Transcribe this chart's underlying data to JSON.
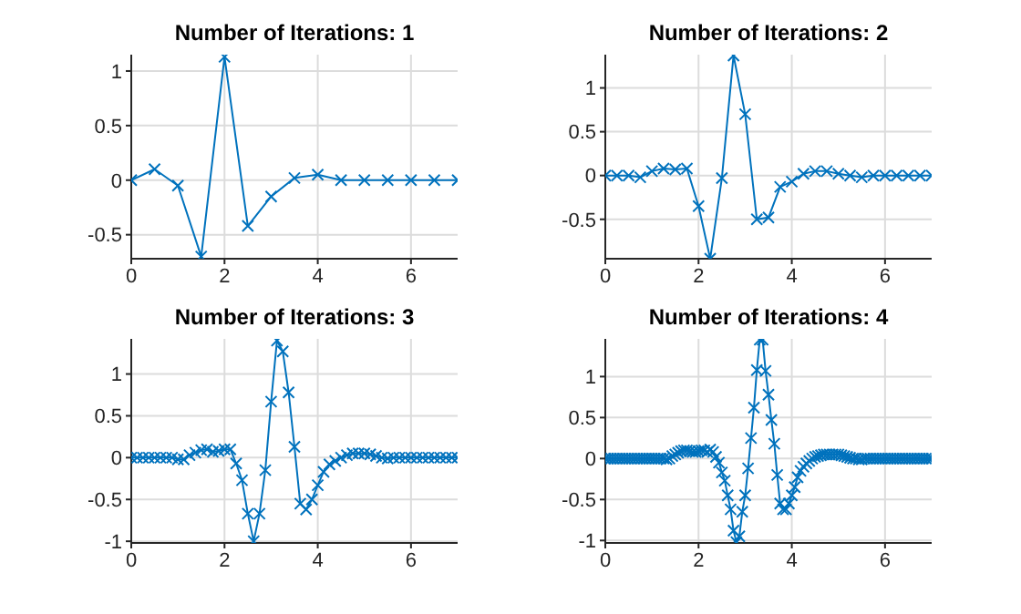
{
  "chart_data": [
    {
      "type": "line",
      "title": "Number of Iterations: 1",
      "xlim": [
        0,
        7
      ],
      "xticks": [
        0,
        2,
        4,
        6
      ],
      "ylim": [
        -0.72,
        1.15
      ],
      "yticks": [
        -0.5,
        0,
        0.5,
        1
      ],
      "grid": true,
      "marker": "cross",
      "line_style": "solid",
      "x": [
        0,
        0.5,
        1,
        1.5,
        2,
        2.5,
        3,
        3.5,
        4,
        4.5,
        5,
        5.5,
        6,
        6.5,
        7
      ],
      "series": [
        {
          "color": "#0072bd",
          "values": [
            0,
            0.1,
            -0.05,
            -0.7,
            1.13,
            -0.42,
            -0.15,
            0.02,
            0.05,
            0,
            0,
            0,
            0,
            0,
            0
          ]
        }
      ]
    },
    {
      "type": "line",
      "title": "Number of Iterations: 2",
      "xlim": [
        0,
        7
      ],
      "xticks": [
        0,
        2,
        4,
        6
      ],
      "ylim": [
        -0.95,
        1.38
      ],
      "yticks": [
        -0.5,
        0,
        0.5,
        1
      ],
      "grid": true,
      "marker": "cross",
      "line_style": "solid",
      "x": [
        0,
        0.25,
        0.5,
        0.75,
        1,
        1.25,
        1.5,
        1.75,
        2,
        2.25,
        2.5,
        2.75,
        3,
        3.25,
        3.5,
        3.75,
        4,
        4.25,
        4.5,
        4.75,
        5,
        5.25,
        5.5,
        5.75,
        6,
        6.25,
        6.5,
        6.75,
        7
      ],
      "series": [
        {
          "color": "#0072bd",
          "values": [
            0,
            0,
            0,
            -0.02,
            0.05,
            0.08,
            0.07,
            0.08,
            -0.35,
            -0.95,
            -0.03,
            1.37,
            0.7,
            -0.5,
            -0.48,
            -0.13,
            -0.07,
            0.02,
            0.05,
            0.05,
            0.02,
            0,
            -0.02,
            0,
            0,
            0,
            0,
            0,
            0
          ]
        }
      ]
    },
    {
      "type": "line",
      "title": "Number of Iterations: 3",
      "xlim": [
        0,
        7
      ],
      "xticks": [
        0,
        2,
        4,
        6
      ],
      "ylim": [
        -1.02,
        1.42
      ],
      "yticks": [
        -1,
        -0.5,
        0,
        0.5,
        1
      ],
      "grid": true,
      "marker": "cross",
      "line_style": "solid",
      "x": [
        0,
        0.125,
        0.25,
        0.375,
        0.5,
        0.625,
        0.75,
        0.875,
        1,
        1.125,
        1.25,
        1.375,
        1.5,
        1.625,
        1.75,
        1.875,
        2,
        2.125,
        2.25,
        2.375,
        2.5,
        2.625,
        2.75,
        2.875,
        3,
        3.125,
        3.25,
        3.375,
        3.5,
        3.625,
        3.75,
        3.875,
        4,
        4.125,
        4.25,
        4.375,
        4.5,
        4.625,
        4.75,
        4.875,
        5,
        5.125,
        5.25,
        5.375,
        5.5,
        5.625,
        5.75,
        5.875,
        6,
        6.125,
        6.25,
        6.375,
        6.5,
        6.625,
        6.75,
        6.875,
        7
      ],
      "series": [
        {
          "color": "#0072bd",
          "values": [
            0,
            0,
            0,
            0,
            0,
            0,
            0,
            0,
            -0.02,
            -0.02,
            0.03,
            0.06,
            0.09,
            0.1,
            0.07,
            0.08,
            0.1,
            0.1,
            -0.07,
            -0.27,
            -0.67,
            -1.0,
            -0.67,
            -0.15,
            0.67,
            1.4,
            1.27,
            0.78,
            0.13,
            -0.55,
            -0.62,
            -0.5,
            -0.33,
            -0.17,
            -0.08,
            -0.04,
            0,
            0.03,
            0.05,
            0.05,
            0.05,
            0.04,
            0.02,
            0,
            -0.01,
            0,
            0,
            0,
            0,
            0,
            0,
            0,
            0,
            0,
            0,
            0,
            0
          ]
        }
      ]
    },
    {
      "type": "line",
      "title": "Number of Iterations: 4",
      "xlim": [
        0,
        7
      ],
      "xticks": [
        0,
        2,
        4,
        6
      ],
      "ylim": [
        -1.03,
        1.46
      ],
      "yticks": [
        -1,
        -0.5,
        0,
        0.5,
        1
      ],
      "grid": true,
      "marker": "cross",
      "line_style": "solid",
      "x": [
        0,
        0.0625,
        0.125,
        0.1875,
        0.25,
        0.3125,
        0.375,
        0.4375,
        0.5,
        0.5625,
        0.625,
        0.6875,
        0.75,
        0.8125,
        0.875,
        0.9375,
        1,
        1.0625,
        1.125,
        1.1875,
        1.25,
        1.3125,
        1.375,
        1.4375,
        1.5,
        1.5625,
        1.625,
        1.6875,
        1.75,
        1.8125,
        1.875,
        1.9375,
        2,
        2.0625,
        2.125,
        2.1875,
        2.25,
        2.3125,
        2.375,
        2.4375,
        2.5,
        2.5625,
        2.625,
        2.6875,
        2.75,
        2.8125,
        2.875,
        2.9375,
        3,
        3.0625,
        3.125,
        3.1875,
        3.25,
        3.3125,
        3.375,
        3.4375,
        3.5,
        3.5625,
        3.625,
        3.6875,
        3.75,
        3.8125,
        3.875,
        3.9375,
        4,
        4.0625,
        4.125,
        4.1875,
        4.25,
        4.3125,
        4.375,
        4.4375,
        4.5,
        4.5625,
        4.625,
        4.6875,
        4.75,
        4.8125,
        4.875,
        4.9375,
        5,
        5.0625,
        5.125,
        5.1875,
        5.25,
        5.3125,
        5.375,
        5.4375,
        5.5,
        5.5625,
        5.625,
        5.6875,
        5.75,
        5.8125,
        5.875,
        5.9375,
        6,
        6.0625,
        6.125,
        6.1875,
        6.25,
        6.3125,
        6.375,
        6.4375,
        6.5,
        6.5625,
        6.625,
        6.6875,
        6.75,
        6.8125,
        6.875,
        6.9375,
        7
      ],
      "series": [
        {
          "color": "#0072bd",
          "values": [
            0,
            0,
            0,
            0,
            0,
            0,
            0,
            0,
            0,
            0,
            0,
            0,
            0,
            0,
            0,
            0,
            0,
            0,
            0,
            0,
            0,
            -0.01,
            0,
            0.03,
            0.05,
            0.07,
            0.09,
            0.1,
            0.1,
            0.09,
            0.08,
            0.08,
            0.09,
            0.1,
            0.1,
            0.08,
            0.11,
            0.08,
            0.02,
            -0.05,
            -0.17,
            -0.27,
            -0.45,
            -0.62,
            -0.88,
            -1.02,
            -0.95,
            -0.65,
            -0.45,
            -0.12,
            0.25,
            0.62,
            1.08,
            1.45,
            1.45,
            1.07,
            0.78,
            0.47,
            0.18,
            -0.2,
            -0.55,
            -0.62,
            -0.62,
            -0.55,
            -0.45,
            -0.35,
            -0.23,
            -0.15,
            -0.1,
            -0.06,
            -0.03,
            0,
            0.02,
            0.03,
            0.04,
            0.05,
            0.05,
            0.05,
            0.05,
            0.05,
            0.05,
            0.04,
            0.03,
            0.02,
            0.01,
            0,
            0,
            -0.01,
            -0.01,
            0,
            0,
            0,
            0,
            0,
            0,
            0,
            0,
            0,
            0,
            0,
            0,
            0,
            0,
            0,
            0,
            0,
            0,
            0,
            0,
            0,
            0,
            0,
            0
          ]
        }
      ]
    }
  ]
}
